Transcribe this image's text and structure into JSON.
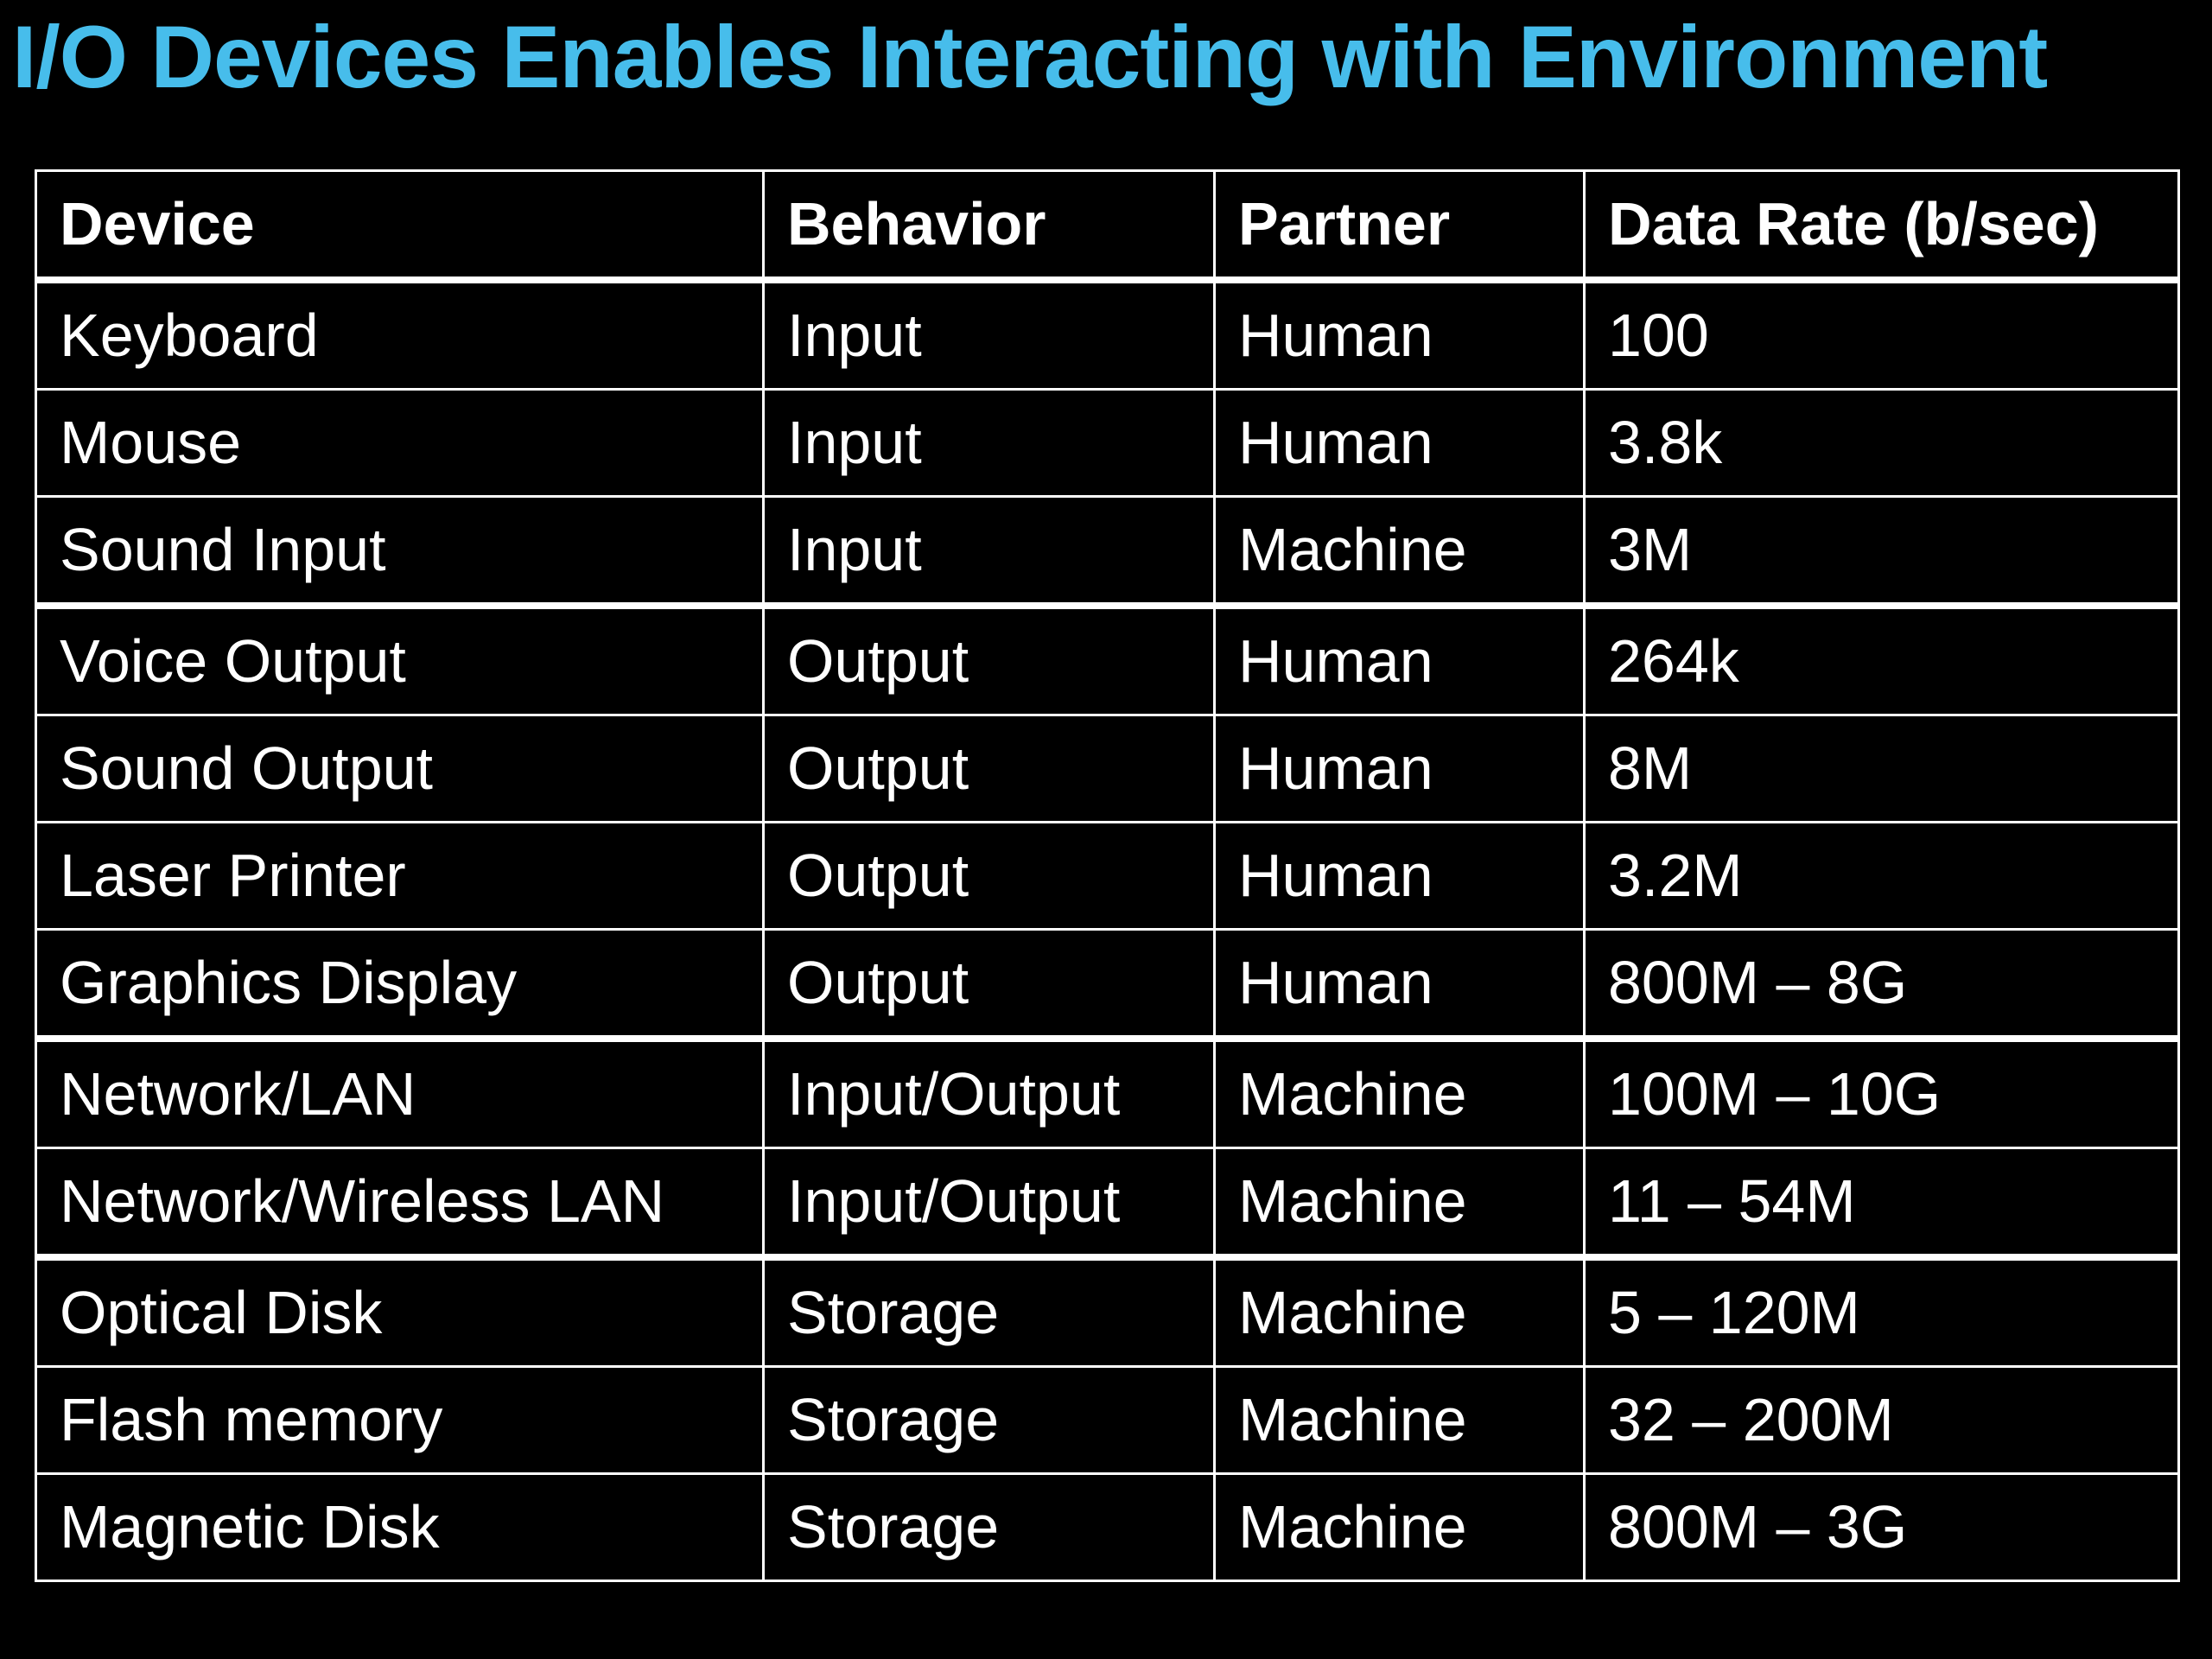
{
  "slide": {
    "title": "I/O Devices Enables Interacting with Environment",
    "title_color": "#47BDEB",
    "background_color": "#000000",
    "table_border_color": "#FFFFFF",
    "table_text_color": "#FFFFFF"
  },
  "chart_data": {
    "type": "table",
    "title": "I/O Devices Enables Interacting with Environment",
    "columns": [
      "Device",
      "Behavior",
      "Partner",
      "Data Rate (b/sec)"
    ],
    "rows": [
      [
        "Keyboard",
        "Input",
        "Human",
        "100"
      ],
      [
        "Mouse",
        "Input",
        "Human",
        "3.8k"
      ],
      [
        "Sound Input",
        "Input",
        "Machine",
        "3M"
      ],
      [
        "Voice Output",
        "Output",
        "Human",
        "264k"
      ],
      [
        "Sound Output",
        "Output",
        "Human",
        "8M"
      ],
      [
        "Laser Printer",
        "Output",
        "Human",
        "3.2M"
      ],
      [
        "Graphics Display",
        "Output",
        "Human",
        "800M – 8G"
      ],
      [
        "Network/LAN",
        "Input/Output",
        "Machine",
        "100M – 10G"
      ],
      [
        "Network/Wireless LAN",
        "Input/Output",
        "Machine",
        "11 – 54M"
      ],
      [
        "Optical Disk",
        "Storage",
        "Machine",
        "5 – 120M"
      ],
      [
        "Flash memory",
        "Storage",
        "Machine",
        "32 – 200M"
      ],
      [
        "Magnetic Disk",
        "Storage",
        "Machine",
        "800M – 3G"
      ]
    ],
    "group_breaks_after_rows": [
      2,
      6,
      8
    ],
    "legend_position": "none",
    "grid": true
  }
}
